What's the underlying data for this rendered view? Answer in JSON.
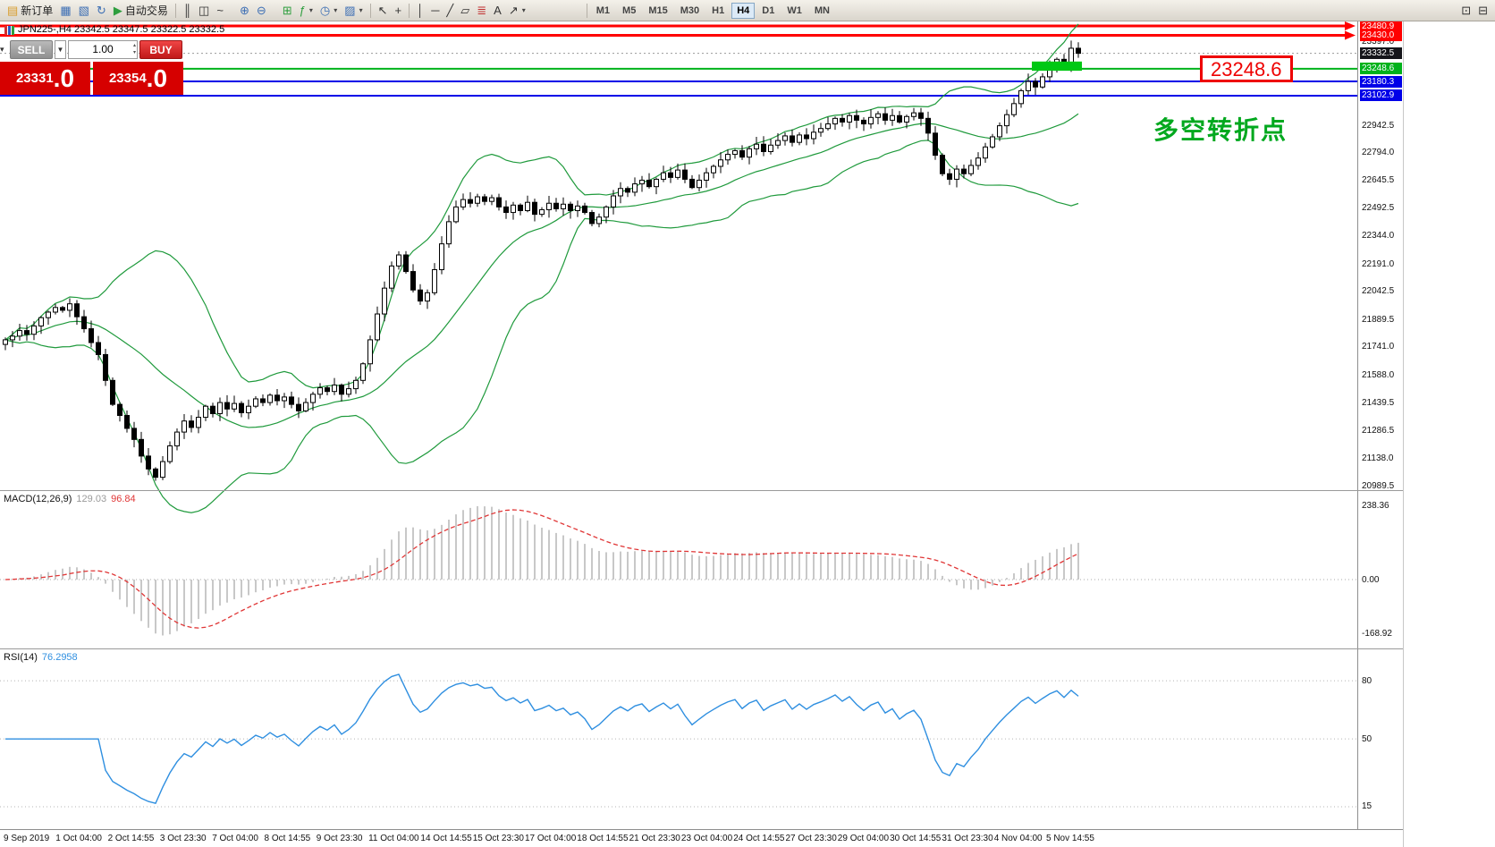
{
  "toolbar": {
    "new_order": "新订单",
    "auto_trading": "自动交易",
    "text_tool": "A",
    "timeframes": [
      "M1",
      "M5",
      "M15",
      "M30",
      "H1",
      "H4",
      "D1",
      "W1",
      "MN"
    ],
    "active_timeframe": "H4"
  },
  "icons": {
    "new_order": "▤",
    "charts": "▦",
    "profiles": "▧",
    "refresh": "↻",
    "autoplay": "▶",
    "bar_chart": "║",
    "candles": "◫",
    "line_chart": "~",
    "zoom_in": "⊕",
    "zoom_out": "⊖",
    "tile": "⊞",
    "indicators": "ƒ",
    "periods": "◷",
    "templates": "▨",
    "caret": "▾",
    "cursor": "↖",
    "crosshair": "+",
    "vline": "│",
    "hline": "─",
    "trendline": "╱",
    "channel": "▱",
    "fibonacci": "≣",
    "arrow": "↗",
    "win1": "⊡",
    "win2": "⊟",
    "collapse": "▾",
    "spin_up": "▴",
    "spin_down": "▾",
    "vol_caret": "▼"
  },
  "chart": {
    "symbol_info": "JPN225-,H4  23342.5 23347.5 23322.5 23332.5"
  },
  "trade_panel": {
    "sell_label": "SELL",
    "buy_label": "BUY",
    "volume": "1.00",
    "sell_price": {
      "int": "23331",
      "frac": ".0"
    },
    "buy_price": {
      "int": "23354",
      "frac": ".0"
    }
  },
  "overlays": {
    "price_label": "23248.6",
    "annotation": "多空转折点"
  },
  "macd": {
    "name": "MACD(12,26,9)",
    "value_main": "129.03",
    "value_signal": "96.84",
    "axis": [
      "238.36",
      "0.00",
      "-168.92"
    ]
  },
  "rsi": {
    "name": "RSI(14)",
    "value": "76.2958"
  },
  "chart_data": {
    "type": "candlestick",
    "symbol": "JPN225-",
    "timeframe": "H4",
    "last_ohlc": {
      "open": 23342.5,
      "high": 23347.5,
      "low": 23322.5,
      "close": 23332.5
    },
    "y_axis_ticks": [
      "23397.0",
      "22942.5",
      "22794.0",
      "22645.5",
      "22492.5",
      "22344.0",
      "22191.0",
      "22042.5",
      "21889.5",
      "21741.0",
      "21588.0",
      "21439.5",
      "21286.5",
      "21138.0",
      "20989.5"
    ],
    "x_axis_labels": [
      "9 Sep 2019",
      "1 Oct 04:00",
      "2 Oct 14:55",
      "3 Oct 23:30",
      "7 Oct 04:00",
      "8 Oct 14:55",
      "9 Oct 23:30",
      "11 Oct 04:00",
      "14 Oct 14:55",
      "15 Oct 23:30",
      "17 Oct 04:00",
      "18 Oct 14:55",
      "21 Oct 23:30",
      "23 Oct 04:00",
      "24 Oct 14:55",
      "27 Oct 23:30",
      "29 Oct 04:00",
      "30 Oct 14:55",
      "31 Oct 23:30",
      "4 Nov 04:00",
      "5 Nov 14:55"
    ],
    "horizontal_lines": [
      {
        "price": 23480.9,
        "label": "23480.9",
        "color": "#ff0000",
        "width": 3,
        "tag": "red",
        "arrow": true
      },
      {
        "price": 23430.0,
        "label": "23430.0",
        "color": "#ff0000",
        "width": 3,
        "tag": "red",
        "arrow": true
      },
      {
        "price": 23248.6,
        "label": "23248.6",
        "color": "#00b21b",
        "width": 2,
        "tag": "green",
        "arrow": false
      },
      {
        "price": 23180.3,
        "label": "23180.3",
        "color": "#0000e8",
        "width": 2,
        "tag": "blue",
        "arrow": false
      },
      {
        "price": 23102.9,
        "label": "23102.9",
        "color": "#0000e8",
        "width": 2,
        "tag": "blue",
        "arrow": false
      }
    ],
    "current_price": {
      "price": 23332.5,
      "label": "23332.5",
      "tag": "current"
    },
    "highlight_zone": {
      "from_bar": 144,
      "to_bar": 150,
      "price_top": 23288,
      "price_bottom": 23238,
      "color": "#00c814"
    },
    "closes": [
      21780,
      21800,
      21830,
      21810,
      21855,
      21900,
      21930,
      21955,
      21940,
      21975,
      21905,
      21840,
      21765,
      21700,
      21560,
      21430,
      21370,
      21300,
      21240,
      21150,
      21080,
      21035,
      21120,
      21205,
      21280,
      21340,
      21305,
      21360,
      21420,
      21380,
      21440,
      21405,
      21435,
      21385,
      21420,
      21460,
      21440,
      21480,
      21450,
      21470,
      21430,
      21395,
      21440,
      21485,
      21520,
      21500,
      21535,
      21485,
      21515,
      21560,
      21650,
      21780,
      21920,
      22060,
      22180,
      22240,
      22150,
      22050,
      21990,
      22035,
      22160,
      22300,
      22420,
      22500,
      22540,
      22520,
      22555,
      22530,
      22550,
      22500,
      22470,
      22510,
      22480,
      22525,
      22460,
      22485,
      22520,
      22490,
      22515,
      22480,
      22505,
      22470,
      22410,
      22445,
      22500,
      22560,
      22600,
      22580,
      22625,
      22645,
      22610,
      22650,
      22685,
      22660,
      22700,
      22650,
      22605,
      22645,
      22685,
      22720,
      22755,
      22785,
      22805,
      22770,
      22815,
      22840,
      22800,
      22835,
      22860,
      22885,
      22850,
      22890,
      22870,
      22905,
      22925,
      22950,
      22980,
      22960,
      22995,
      22970,
      22950,
      22985,
      23005,
      22970,
      22995,
      22960,
      22990,
      23010,
      22980,
      22900,
      22780,
      22680,
      22650,
      22705,
      22680,
      22725,
      22765,
      22825,
      22880,
      22940,
      23000,
      23060,
      23130,
      23180,
      23150,
      23205,
      23260,
      23300,
      23270,
      23360,
      23332.5
    ],
    "indicators": {
      "bollinger": {
        "period": 20,
        "deviation": 2,
        "color": "#1f9a3c"
      },
      "macd": {
        "fast": 12,
        "slow": 26,
        "signal": 9,
        "histogram_color": "#c8c8c8",
        "signal_color": "#e03636"
      },
      "rsi": {
        "period": 14,
        "color": "#2f8fe0",
        "levels": [
          80,
          50,
          15
        ]
      }
    }
  }
}
